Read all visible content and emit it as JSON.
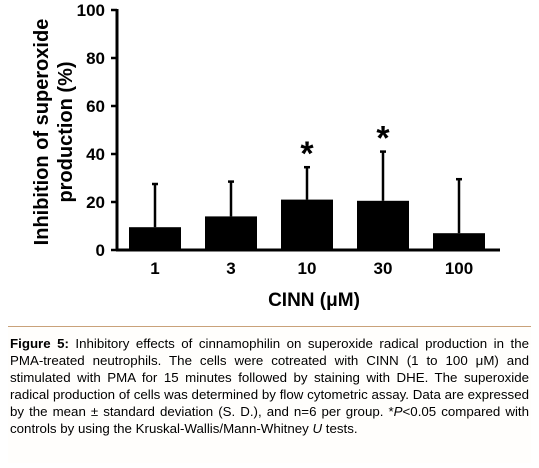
{
  "chart_data": {
    "type": "bar",
    "categories": [
      "1",
      "3",
      "10",
      "30",
      "100"
    ],
    "values": [
      9.5,
      14,
      21,
      20.5,
      7
    ],
    "error_upper": [
      18,
      14.5,
      13.5,
      20.5,
      22.5
    ],
    "significant": [
      false,
      false,
      true,
      true,
      false
    ],
    "significance_marker": "*",
    "ylabel_line1": "Inhibition of superoxide",
    "ylabel_line2": "production (%)",
    "xlabel": "CINN (μM)",
    "ylim": [
      0,
      100
    ],
    "yticks": [
      "0",
      "20",
      "40",
      "60",
      "80",
      "100"
    ],
    "bar_color": "#000000"
  },
  "caption": {
    "label": "Figure 5:",
    "text_1": " Inhibitory effects of cinnamophilin on superoxide radical production in the PMA-treated neutrophils. The cells were cotreated with CINN (1 to 100 μM) and stimulated with PMA for 15 minutes followed by staining with DHE. The superoxide radical production of cells was determined by flow cytometric assay. Data are expressed by the mean ± standard deviation (S. D.), and n=6 per group. *",
    "p_italic": "P",
    "text_2": "<0.05 compared with controls by using the Kruskal-Wallis/Mann-Whitney ",
    "u_italic": "U",
    "text_3": " tests."
  }
}
